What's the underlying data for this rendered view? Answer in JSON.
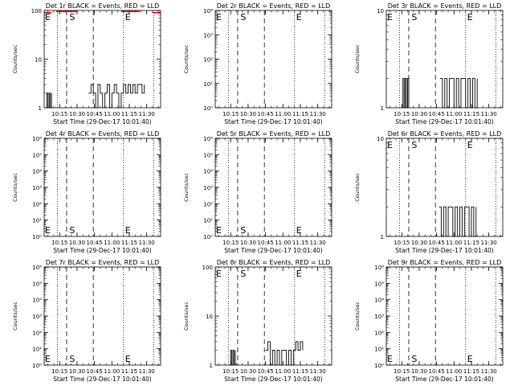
{
  "panels": [
    {
      "title": "Det 1r BLACK = Events, RED = LLD",
      "ylabel": "Counts/sec",
      "xlabel": "Start Time (29-Dec-17 10:01:40)",
      "yticks": [
        "1",
        "10",
        "100"
      ],
      "xticks": [
        "10:15",
        "10:30",
        "10:45",
        "11:00",
        "11:15",
        "11:30"
      ],
      "markers": {
        "E1": "E",
        "S": "S",
        "E2": "E"
      }
    },
    {
      "title": "Det 2r BLACK = Events, RED = LLD",
      "ylabel": "Counts/sec",
      "xlabel": "Start Time (29-Dec-17 10:01:40)",
      "yticks": [
        "10⁰",
        "10¹",
        "10²",
        "10³",
        "10⁴"
      ],
      "xticks": [
        "10:15",
        "10:30",
        "10:45",
        "11:00",
        "11:15",
        "11:30"
      ],
      "markers": {
        "E1": "E",
        "S": "S",
        "E2": "E"
      }
    },
    {
      "title": "Det 3r BLACK = Events, RED = LLD",
      "ylabel": "Counts/sec",
      "xlabel": "Start Time (29-Dec-17 10:01:40)",
      "yticks": [
        "1",
        "10"
      ],
      "xticks": [
        "10:15",
        "10:30",
        "10:45",
        "11:00",
        "11:15",
        "11:30"
      ],
      "markers": {
        "E1": "E",
        "S": "S",
        "E2": "E"
      }
    },
    {
      "title": "Det 4r BLACK = Events, RED = LLD",
      "ylabel": "Counts/sec",
      "xlabel": "Start Time (29-Dec-17 10:01:40)",
      "yticks": [
        "10⁰",
        "10¹",
        "10²",
        "10³",
        "10⁴",
        "10⁵",
        "10⁶"
      ],
      "xticks": [
        "10:15",
        "10:30",
        "10:45",
        "11:00",
        "11:15",
        "11:30"
      ],
      "markers": {
        "E1": "E",
        "S": "S",
        "E2": "E"
      }
    },
    {
      "title": "Det 5r BLACK = Events, RED = LLD",
      "ylabel": "Counts/sec",
      "xlabel": "Start Time (29-Dec-17 10:01:40)",
      "yticks": [
        "10⁰",
        "10¹",
        "10²",
        "10³",
        "10⁴",
        "10⁵",
        "10⁶"
      ],
      "xticks": [
        "10:15",
        "10:30",
        "10:45",
        "11:00",
        "11:15",
        "11:30"
      ],
      "markers": {
        "E1": "E",
        "S": "S",
        "E2": "E"
      }
    },
    {
      "title": "Det 6r BLACK = Events, RED = LLD",
      "ylabel": "Counts/sec",
      "xlabel": "Start Time (29-Dec-17 10:01:40)",
      "yticks": [
        "1",
        "10"
      ],
      "xticks": [
        "10:15",
        "10:30",
        "10:45",
        "11:00",
        "11:15",
        "11:30"
      ],
      "markers": {
        "E1": "E",
        "S": "S",
        "E2": "E"
      }
    },
    {
      "title": "Det 7r BLACK = Events, RED = LLD",
      "ylabel": "Counts/sec",
      "xlabel": "Start Time (29-Dec-17 10:01:40)",
      "yticks": [
        "10⁰",
        "10¹",
        "10²",
        "10³",
        "10⁴",
        "10⁵",
        "10⁶"
      ],
      "xticks": [
        "10:15",
        "10:30",
        "10:45",
        "11:00",
        "11:15",
        "11:30"
      ],
      "markers": {
        "E1": "E",
        "S": "S",
        "E2": "E"
      }
    },
    {
      "title": "Det 8r BLACK = Events, RED = LLD",
      "ylabel": "Counts/sec",
      "xlabel": "Start Time (29-Dec-17 10:01:40)",
      "yticks": [
        "1",
        "10",
        "100"
      ],
      "xticks": [
        "10:15",
        "10:30",
        "10:45",
        "11:00",
        "11:15",
        "11:30"
      ],
      "markers": {
        "E1": "E",
        "S": "S",
        "E2": "E"
      }
    },
    {
      "title": "Det 9r BLACK = Events, RED = LLD",
      "ylabel": "Counts/sec",
      "xlabel": "Start Time (29-Dec-17 10:01:40)",
      "yticks": [
        "10⁰",
        "10¹",
        "10²",
        "10³",
        "10⁴",
        "10⁵",
        "10⁶"
      ],
      "xticks": [
        "10:15",
        "10:30",
        "10:45",
        "11:00",
        "11:15",
        "11:30"
      ],
      "markers": {
        "E1": "E",
        "S": "S",
        "E2": "E"
      }
    }
  ],
  "colors": {
    "events": "#000000",
    "lld": "#ff0000"
  },
  "chart_data": [
    {
      "type": "line",
      "title": "Det 1r BLACK = Events, RED = LLD",
      "ylog": true,
      "ylim": [
        1,
        100
      ],
      "xlim": [
        "10:01:40",
        "11:42"
      ],
      "series": [
        {
          "name": "Events",
          "color": "#000000",
          "segments": [
            {
              "x": [
                "10:03",
                "10:04",
                "10:05",
                "10:06",
                "10:07",
                "10:08"
              ],
              "y": [
                1,
                2,
                1,
                2,
                1,
                2
              ]
            },
            {
              "x": [
                "10:40",
                "10:42",
                "10:44",
                "10:46",
                "10:48",
                "10:50",
                "10:52",
                "10:54",
                "10:56",
                "10:58",
                "11:00",
                "11:02",
                "11:04",
                "11:06",
                "11:08",
                "11:10",
                "11:12",
                "11:14",
                "11:16",
                "11:18",
                "11:20",
                "11:22",
                "11:24",
                "11:26",
                "11:28"
              ],
              "y": [
                2,
                3,
                2,
                1,
                3,
                2,
                1,
                2,
                3,
                1,
                2,
                3,
                2,
                1,
                2,
                3,
                2,
                3,
                2,
                3,
                2,
                3,
                3,
                2,
                3
              ]
            }
          ]
        },
        {
          "name": "LLD",
          "color": "#ff0000",
          "segments": [
            {
              "x": [
                "10:01:40",
                "10:08"
              ],
              "y": [
                90,
                90
              ]
            },
            {
              "x": [
                "10:12",
                "10:30"
              ],
              "y": [
                95,
                95
              ]
            },
            {
              "x": [
                "11:08",
                "11:24"
              ],
              "y": [
                95,
                95
              ]
            },
            {
              "x": [
                "11:35",
                "11:42"
              ],
              "y": [
                90,
                90
              ]
            }
          ]
        }
      ]
    },
    {
      "type": "line",
      "title": "Det 2r BLACK = Events, RED = LLD",
      "ylog": true,
      "ylim": [
        1,
        10000
      ],
      "xlim": [
        "10:01:40",
        "11:42"
      ],
      "series": []
    },
    {
      "type": "line",
      "title": "Det 3r BLACK = Events, RED = LLD",
      "ylog": true,
      "ylim": [
        1,
        10
      ],
      "xlim": [
        "10:01:40",
        "11:42"
      ],
      "series": [
        {
          "name": "Events",
          "color": "#000000",
          "segments": [
            {
              "x": [
                "10:15",
                "10:16",
                "10:17",
                "10:18",
                "10:19",
                "10:20",
                "10:21"
              ],
              "y": [
                1,
                2,
                1,
                2,
                1,
                2,
                1
              ]
            },
            {
              "x": [
                "10:48",
                "10:50",
                "10:52",
                "10:54",
                "10:56",
                "10:58",
                "11:00",
                "11:02",
                "11:04",
                "11:06",
                "11:08",
                "11:10",
                "11:12",
                "11:14",
                "11:16",
                "11:18",
                "11:20"
              ],
              "y": [
                2,
                1,
                2,
                1,
                2,
                2,
                1,
                2,
                1,
                2,
                2,
                1,
                2,
                1,
                2,
                1,
                2
              ]
            }
          ]
        }
      ]
    },
    {
      "type": "line",
      "title": "Det 4r BLACK = Events, RED = LLD",
      "ylog": true,
      "ylim": [
        1,
        1000000
      ],
      "xlim": [
        "10:01:40",
        "11:42"
      ],
      "series": []
    },
    {
      "type": "line",
      "title": "Det 5r BLACK = Events, RED = LLD",
      "ylog": true,
      "ylim": [
        1,
        1000000
      ],
      "xlim": [
        "10:01:40",
        "11:42"
      ],
      "series": []
    },
    {
      "type": "line",
      "title": "Det 6r BLACK = Events, RED = LLD",
      "ylog": true,
      "ylim": [
        1,
        10
      ],
      "xlim": [
        "10:01:40",
        "11:42"
      ],
      "series": [
        {
          "name": "Events",
          "color": "#000000",
          "segments": [
            {
              "x": [
                "10:47",
                "10:49",
                "10:51",
                "10:53",
                "10:55",
                "10:57",
                "10:59",
                "11:01",
                "11:03",
                "11:05",
                "11:07",
                "11:09",
                "11:11",
                "11:13",
                "11:15",
                "11:17",
                "11:19"
              ],
              "y": [
                2,
                1,
                2,
                1,
                2,
                2,
                1,
                2,
                1,
                2,
                1,
                2,
                2,
                1,
                2,
                1,
                2
              ]
            }
          ]
        }
      ]
    },
    {
      "type": "line",
      "title": "Det 7r BLACK = Events, RED = LLD",
      "ylog": true,
      "ylim": [
        1,
        1000000
      ],
      "xlim": [
        "10:01:40",
        "11:42"
      ],
      "series": []
    },
    {
      "type": "line",
      "title": "Det 8r BLACK = Events, RED = LLD",
      "ylog": true,
      "ylim": [
        1,
        100
      ],
      "xlim": [
        "10:01:40",
        "11:42"
      ],
      "series": [
        {
          "name": "Events",
          "color": "#000000",
          "segments": [
            {
              "x": [
                "10:14",
                "10:15",
                "10:16",
                "10:17",
                "10:18",
                "10:19"
              ],
              "y": [
                1,
                2,
                1,
                2,
                1,
                2
              ]
            },
            {
              "x": [
                "10:45",
                "10:47",
                "10:49",
                "10:51",
                "10:53",
                "10:55",
                "10:57",
                "10:59",
                "11:01",
                "11:03",
                "11:05",
                "11:07",
                "11:09",
                "11:11",
                "11:13",
                "11:15",
                "11:17"
              ],
              "y": [
                2,
                3,
                1,
                2,
                1,
                2,
                1,
                2,
                2,
                1,
                2,
                1,
                2,
                3,
                2,
                3,
                2
              ]
            }
          ]
        }
      ]
    },
    {
      "type": "line",
      "title": "Det 9r BLACK = Events, RED = LLD",
      "ylog": true,
      "ylim": [
        1,
        1000000
      ],
      "xlim": [
        "10:01:40",
        "11:42"
      ],
      "series": []
    }
  ]
}
